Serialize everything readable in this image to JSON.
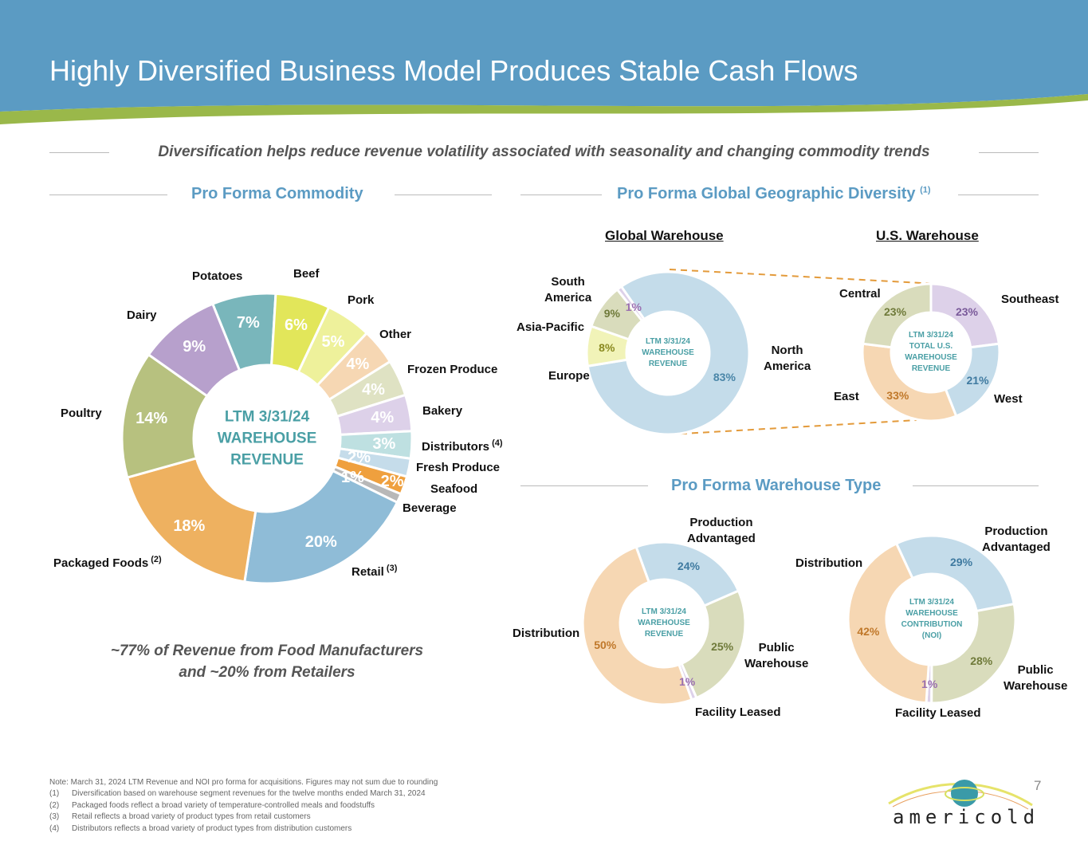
{
  "title": "Highly Diversified Business Model Produces Stable Cash Flows",
  "subtitle": "Diversification helps reduce revenue volatility associated with seasonality and changing commodity trends",
  "sections": {
    "commodity": "Pro Forma Commodity",
    "geo": "Pro Forma Global Geographic Diversity",
    "geo_sup": "(1)",
    "type": "Pro Forma Warehouse Type"
  },
  "subheads": {
    "global": "Global Warehouse",
    "us": "U.S. Warehouse"
  },
  "callout": [
    "~77% of Revenue from Food Manufacturers",
    "and ~20% from Retailers"
  ],
  "notes": {
    "main": "Note: March 31, 2024 LTM Revenue and NOI pro forma for acquisitions. Figures may not sum due to rounding",
    "items": [
      [
        "(1)",
        "Diversification based on warehouse segment revenues for the twelve months ended March 31, 2024"
      ],
      [
        "(2)",
        "Packaged foods reflect a broad variety of temperature-controlled meals and foodstuffs"
      ],
      [
        "(3)",
        "Retail reflects a broad variety of product types from retail customers"
      ],
      [
        "(4)",
        "Distributors reflects a broad variety of product types from distribution customers"
      ]
    ]
  },
  "page_number": "7",
  "logo_text": "americold",
  "colors": {
    "header": "#5b9bc3",
    "accent": "#5b9bc3",
    "center_text": "#4a9fa5"
  },
  "chart_data": [
    {
      "type": "pie",
      "variant": "donut",
      "id": "commodity",
      "center_label": [
        "LTM 3/31/24",
        "WAREHOUSE",
        "REVENUE"
      ],
      "slices": [
        {
          "name": "Potatoes",
          "value": 7,
          "color": "#79b6bb",
          "label_color": "#ffffff"
        },
        {
          "name": "Beef",
          "value": 6,
          "color": "#e2e65a",
          "label_color": "#ffffff"
        },
        {
          "name": "Pork",
          "value": 5,
          "color": "#eef19b",
          "label_color": "#ffffff"
        },
        {
          "name": "Other",
          "value": 4,
          "color": "#f6d7b3",
          "label_color": "#ffffff"
        },
        {
          "name": "Frozen Produce",
          "value": 4,
          "color": "#dfe2c3",
          "label_color": "#ffffff"
        },
        {
          "name": "Bakery",
          "value": 4,
          "color": "#ddd1e9",
          "label_color": "#ffffff"
        },
        {
          "name": "Distributors",
          "sup": "(4)",
          "value": 3,
          "color": "#bee0e1",
          "label_color": "#ffffff"
        },
        {
          "name": "Fresh Produce",
          "value": 2,
          "color": "#c5dcea",
          "label_color": "#ffffff"
        },
        {
          "name": "Seafood",
          "value": 2,
          "color": "#efa03e",
          "label_color": "#ffffff"
        },
        {
          "name": "Beverage",
          "value": 1,
          "color": "#b8b8b8",
          "label_color": "#ffffff"
        },
        {
          "name": "Retail",
          "sup": "(3)",
          "value": 20,
          "color": "#8fbcd7",
          "label_color": "#ffffff"
        },
        {
          "name": "Packaged Foods",
          "sup": "(2)",
          "value": 18,
          "color": "#eeb160",
          "label_color": "#ffffff"
        },
        {
          "name": "Poultry",
          "value": 14,
          "color": "#b7c17f",
          "label_color": "#ffffff"
        },
        {
          "name": "Dairy",
          "value": 9,
          "color": "#b7a0cc",
          "label_color": "#ffffff"
        }
      ]
    },
    {
      "type": "pie",
      "variant": "donut",
      "id": "global",
      "title": "Global Warehouse",
      "center_label": [
        "LTM 3/31/24",
        "WAREHOUSE",
        "REVENUE"
      ],
      "slices": [
        {
          "name": "North America",
          "value": 83,
          "color": "#c4dcea",
          "label_color": "#4a86a8"
        },
        {
          "name": "Europe",
          "value": 8,
          "color": "#f1f3b8",
          "label_color": "#8a8a20"
        },
        {
          "name": "Asia-Pacific",
          "value": 9,
          "color": "#d9dcbc",
          "label_color": "#6f7a3a"
        },
        {
          "name": "South America",
          "value": 1,
          "color": "#ddd1e9",
          "label_color": "#9a6fb0"
        }
      ]
    },
    {
      "type": "pie",
      "variant": "donut",
      "id": "us",
      "title": "U.S. Warehouse",
      "center_label": [
        "LTM 3/31/24",
        "TOTAL U.S.",
        "WAREHOUSE",
        "REVENUE"
      ],
      "slices": [
        {
          "name": "Southeast",
          "value": 23,
          "color": "#ddd1e9",
          "label_color": "#7a5a9a"
        },
        {
          "name": "West",
          "value": 21,
          "color": "#c4dcea",
          "label_color": "#3f7aa0"
        },
        {
          "name": "East",
          "value": 33,
          "color": "#f6d7b3",
          "label_color": "#c0782a"
        },
        {
          "name": "Central",
          "value": 23,
          "color": "#d9dcbc",
          "label_color": "#6f7a3a"
        }
      ]
    },
    {
      "type": "pie",
      "variant": "donut",
      "id": "type_revenue",
      "center_label": [
        "LTM 3/31/24",
        "WAREHOUSE",
        "REVENUE"
      ],
      "slices": [
        {
          "name": "Production Advantaged",
          "value": 24,
          "color": "#c4dcea",
          "label_color": "#3f7aa0"
        },
        {
          "name": "Public Warehouse",
          "value": 25,
          "color": "#d9dcbc",
          "label_color": "#6f7a3a"
        },
        {
          "name": "Facility Leased",
          "value": 1,
          "color": "#ddd1e9",
          "label_color": "#9a6fb0"
        },
        {
          "name": "Distribution",
          "value": 50,
          "color": "#f6d7b3",
          "label_color": "#c0782a"
        }
      ]
    },
    {
      "type": "pie",
      "variant": "donut",
      "id": "type_noi",
      "center_label": [
        "LTM 3/31/24",
        "WAREHOUSE",
        "CONTRIBUTION",
        "(NOI)"
      ],
      "slices": [
        {
          "name": "Production Advantaged",
          "value": 29,
          "color": "#c4dcea",
          "label_color": "#3f7aa0"
        },
        {
          "name": "Public Warehouse",
          "value": 28,
          "color": "#d9dcbc",
          "label_color": "#6f7a3a"
        },
        {
          "name": "Facility Leased",
          "value": 1,
          "color": "#ddd1e9",
          "label_color": "#9a6fb0"
        },
        {
          "name": "Distribution",
          "value": 42,
          "color": "#f6d7b3",
          "label_color": "#c0782a"
        }
      ]
    }
  ]
}
